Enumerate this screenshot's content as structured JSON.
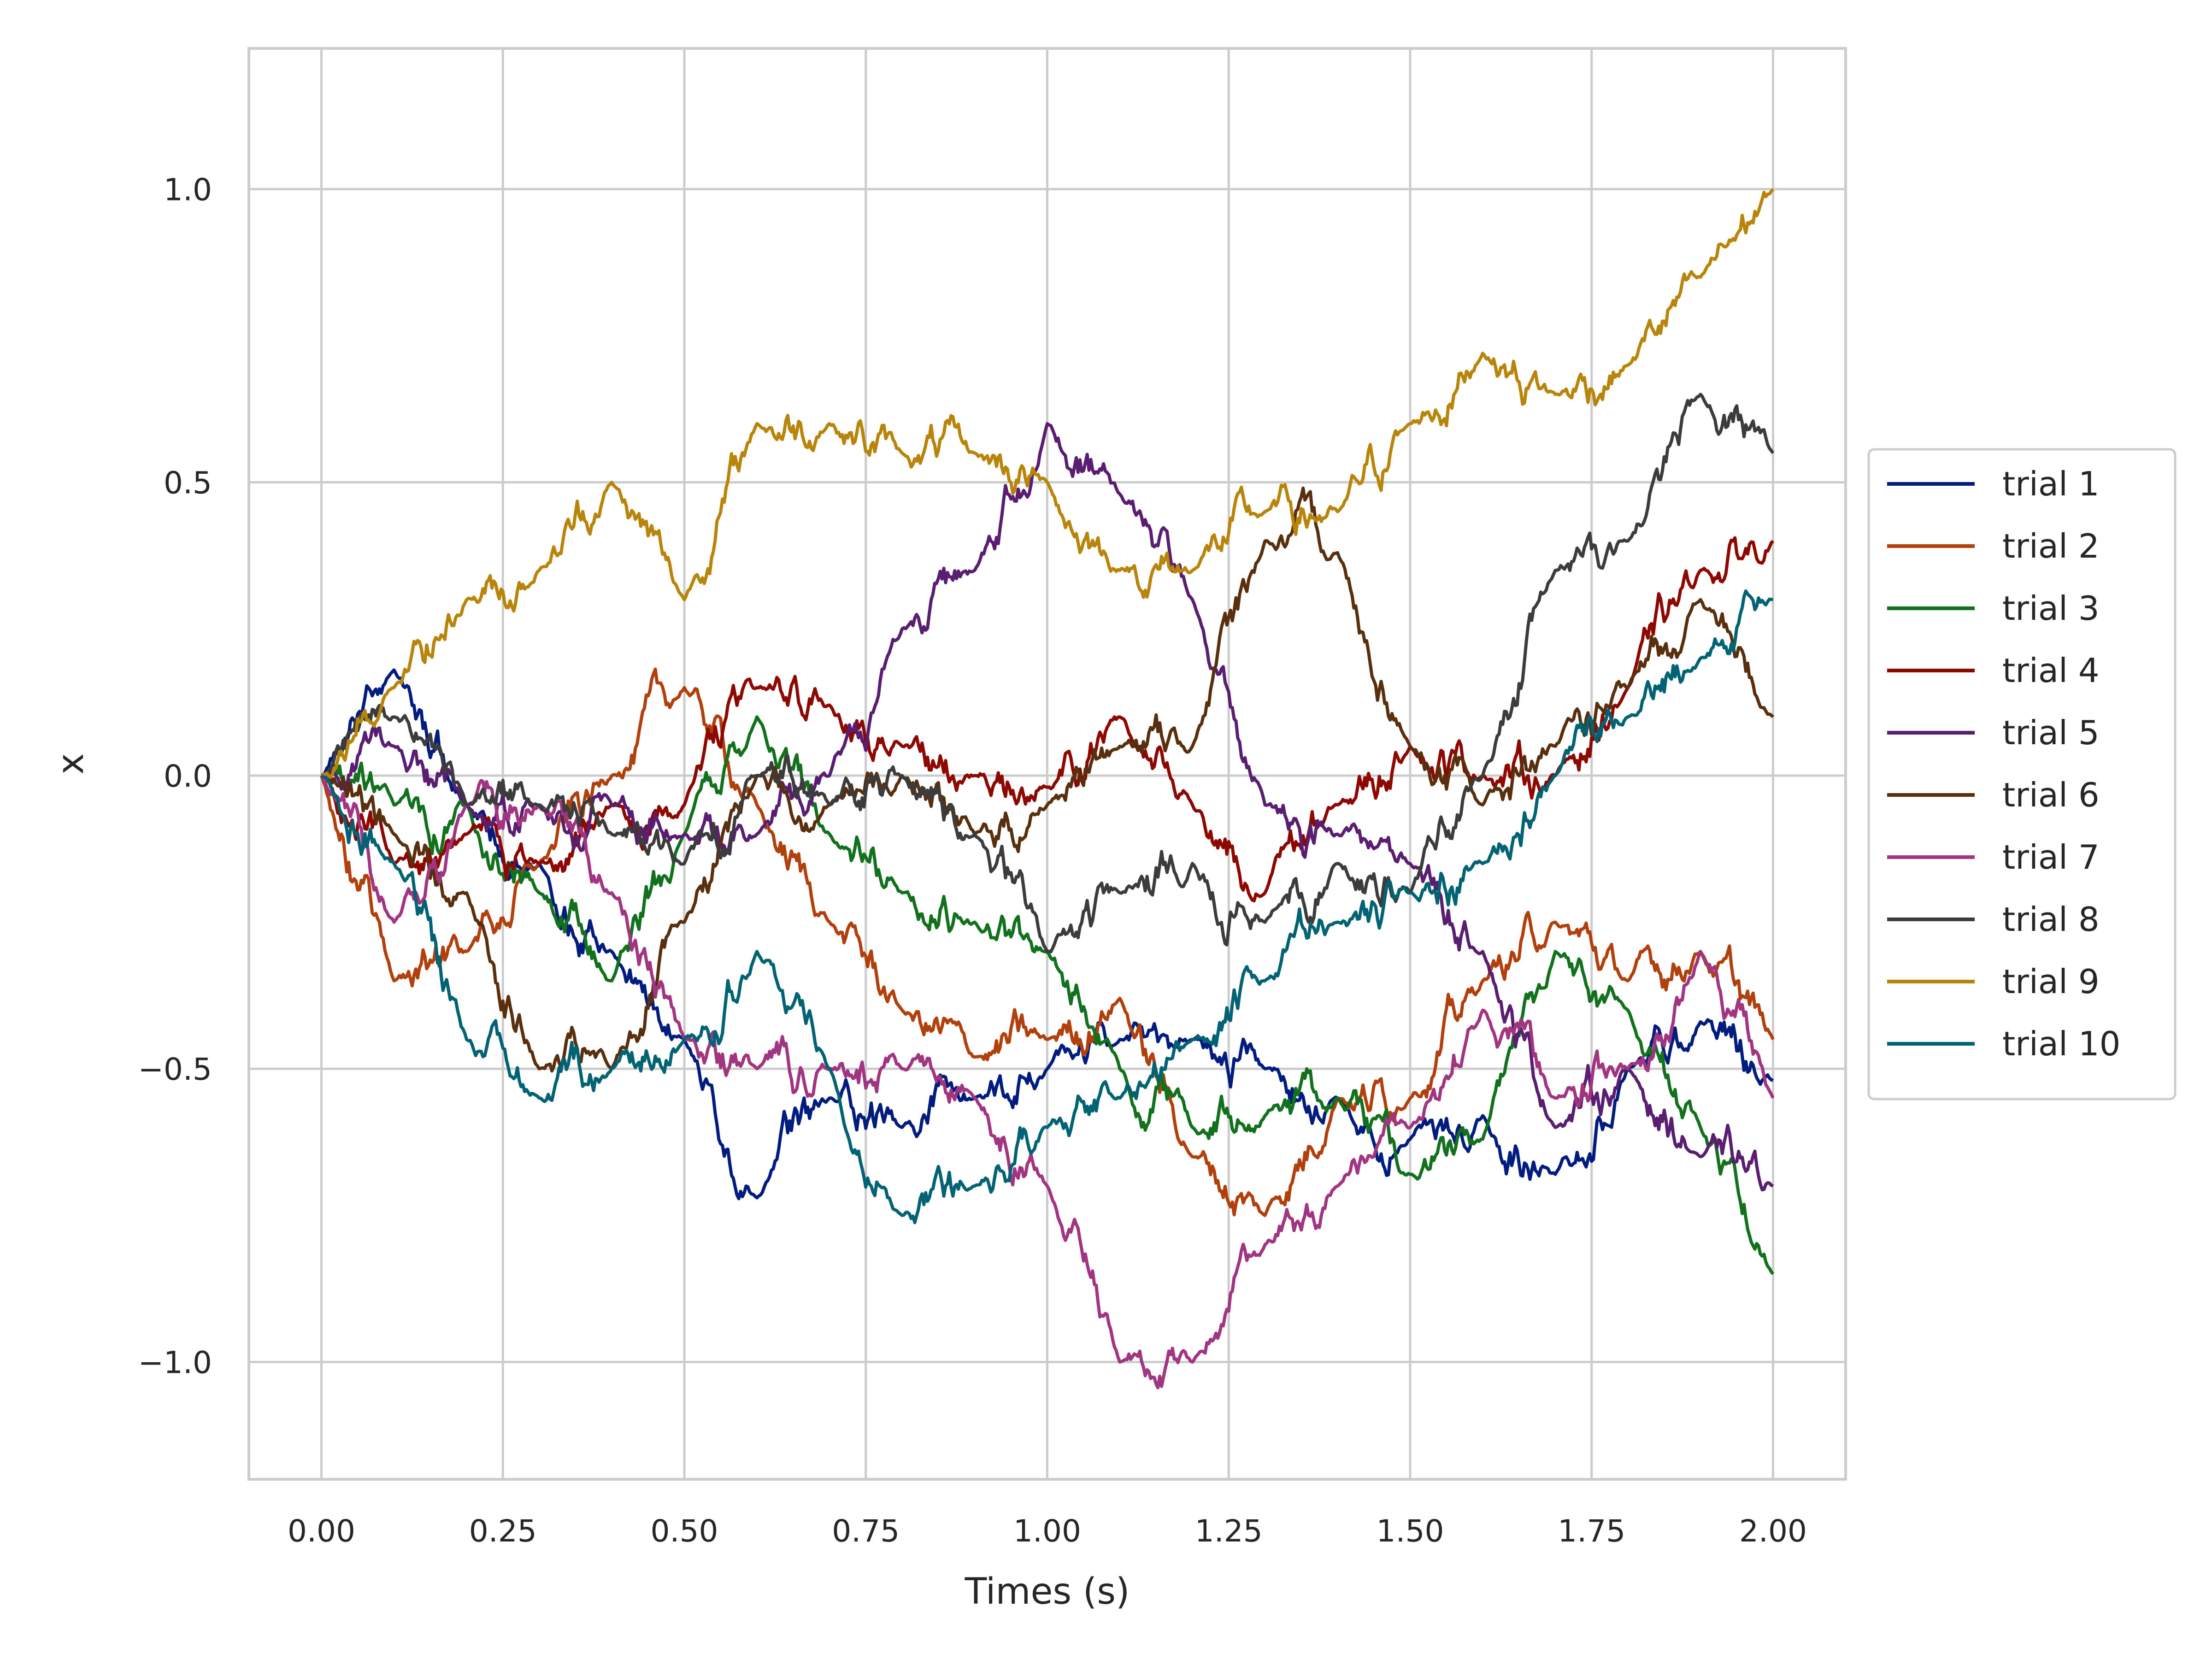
{
  "chart_data": {
    "type": "line",
    "title": "",
    "xlabel": "Times (s)",
    "ylabel": "x",
    "xlim": [
      -0.1,
      2.1
    ],
    "ylim": [
      -1.2,
      1.24
    ],
    "xticks": [
      0.0,
      0.25,
      0.5,
      0.75,
      1.0,
      1.25,
      1.5,
      1.75,
      2.0
    ],
    "xtick_labels": [
      "0.00",
      "0.25",
      "0.50",
      "0.75",
      "1.00",
      "1.25",
      "1.50",
      "1.75",
      "2.00"
    ],
    "yticks": [
      -1.0,
      -0.5,
      0.0,
      0.5,
      1.0
    ],
    "ytick_labels": [
      "−1.0",
      "−0.5",
      "0.0",
      "0.5",
      "1.0"
    ],
    "grid": true,
    "legend_position": "right-center",
    "x": [
      0.0,
      0.1,
      0.2,
      0.3,
      0.4,
      0.5,
      0.6,
      0.7,
      0.8,
      0.9,
      1.0,
      1.1,
      1.2,
      1.3,
      1.4,
      1.5,
      1.6,
      1.7,
      1.8,
      1.9,
      2.0
    ],
    "series": [
      {
        "name": "trial 1",
        "color": "#001c7f",
        "values": [
          0.0,
          0.18,
          -0.05,
          -0.15,
          -0.3,
          -0.45,
          -0.72,
          -0.55,
          -0.6,
          -0.55,
          -0.5,
          -0.45,
          -0.45,
          -0.5,
          -0.55,
          -0.62,
          -0.58,
          -0.68,
          -0.5,
          -0.42,
          -0.52
        ]
      },
      {
        "name": "trial 2",
        "color": "#b1400d",
        "values": [
          0.0,
          -0.35,
          -0.3,
          -0.15,
          0.0,
          0.15,
          -0.05,
          -0.25,
          -0.4,
          -0.48,
          -0.45,
          -0.38,
          -0.65,
          -0.75,
          -0.55,
          -0.55,
          -0.35,
          -0.25,
          -0.35,
          -0.3,
          -0.45
        ]
      },
      {
        "name": "trial 3",
        "color": "#12711c",
        "values": [
          0.0,
          -0.05,
          -0.05,
          -0.2,
          -0.35,
          -0.1,
          0.1,
          -0.1,
          -0.2,
          -0.25,
          -0.3,
          -0.5,
          -0.6,
          -0.58,
          -0.55,
          -0.68,
          -0.62,
          -0.3,
          -0.4,
          -0.6,
          -0.85
        ]
      },
      {
        "name": "trial 4",
        "color": "#8c0800",
        "values": [
          0.0,
          -0.15,
          -0.1,
          -0.15,
          -0.05,
          -0.05,
          0.15,
          0.12,
          0.05,
          0.0,
          -0.02,
          0.1,
          -0.05,
          -0.2,
          -0.05,
          0.05,
          0.0,
          0.0,
          0.15,
          0.35,
          0.4
        ]
      },
      {
        "name": "trial 5",
        "color": "#591e71",
        "values": [
          0.0,
          0.05,
          -0.05,
          -0.05,
          -0.05,
          -0.1,
          -0.1,
          0.0,
          0.25,
          0.35,
          0.6,
          0.48,
          0.3,
          -0.05,
          -0.1,
          -0.15,
          -0.3,
          -0.6,
          -0.5,
          -0.65,
          -0.7
        ]
      },
      {
        "name": "trial 6",
        "color": "#592f0d",
        "values": [
          0.0,
          -0.1,
          -0.2,
          -0.5,
          -0.5,
          -0.25,
          0.0,
          -0.05,
          0.0,
          -0.1,
          -0.05,
          0.05,
          0.05,
          0.4,
          0.38,
          0.05,
          -0.05,
          0.05,
          0.15,
          0.3,
          0.1
        ]
      },
      {
        "name": "trial 7",
        "color": "#a23582",
        "values": [
          0.0,
          -0.25,
          -0.05,
          -0.05,
          -0.2,
          -0.45,
          -0.5,
          -0.5,
          -0.5,
          -0.55,
          -0.7,
          -1.0,
          -1.0,
          -0.8,
          -0.7,
          -0.6,
          -0.4,
          -0.55,
          -0.5,
          -0.3,
          -0.55
        ]
      },
      {
        "name": "trial 8",
        "color": "#3c3c3c",
        "values": [
          0.0,
          0.1,
          -0.05,
          -0.05,
          -0.1,
          -0.15,
          0.0,
          -0.05,
          0.0,
          -0.1,
          -0.3,
          -0.2,
          -0.15,
          -0.25,
          -0.15,
          -0.2,
          0.0,
          0.35,
          0.4,
          0.65,
          0.55
        ]
      },
      {
        "name": "trial 9",
        "color": "#b8850a",
        "values": [
          0.0,
          0.15,
          0.3,
          0.35,
          0.5,
          0.3,
          0.6,
          0.6,
          0.55,
          0.55,
          0.5,
          0.35,
          0.35,
          0.45,
          0.45,
          0.6,
          0.72,
          0.65,
          0.7,
          0.85,
          1.0
        ]
      },
      {
        "name": "trial 10",
        "color": "#006374",
        "values": [
          0.0,
          -0.15,
          -0.45,
          -0.55,
          -0.5,
          -0.45,
          -0.3,
          -0.5,
          -0.75,
          -0.7,
          -0.6,
          -0.55,
          -0.45,
          -0.35,
          -0.25,
          -0.2,
          -0.15,
          0.0,
          0.1,
          0.2,
          0.3
        ]
      }
    ]
  }
}
